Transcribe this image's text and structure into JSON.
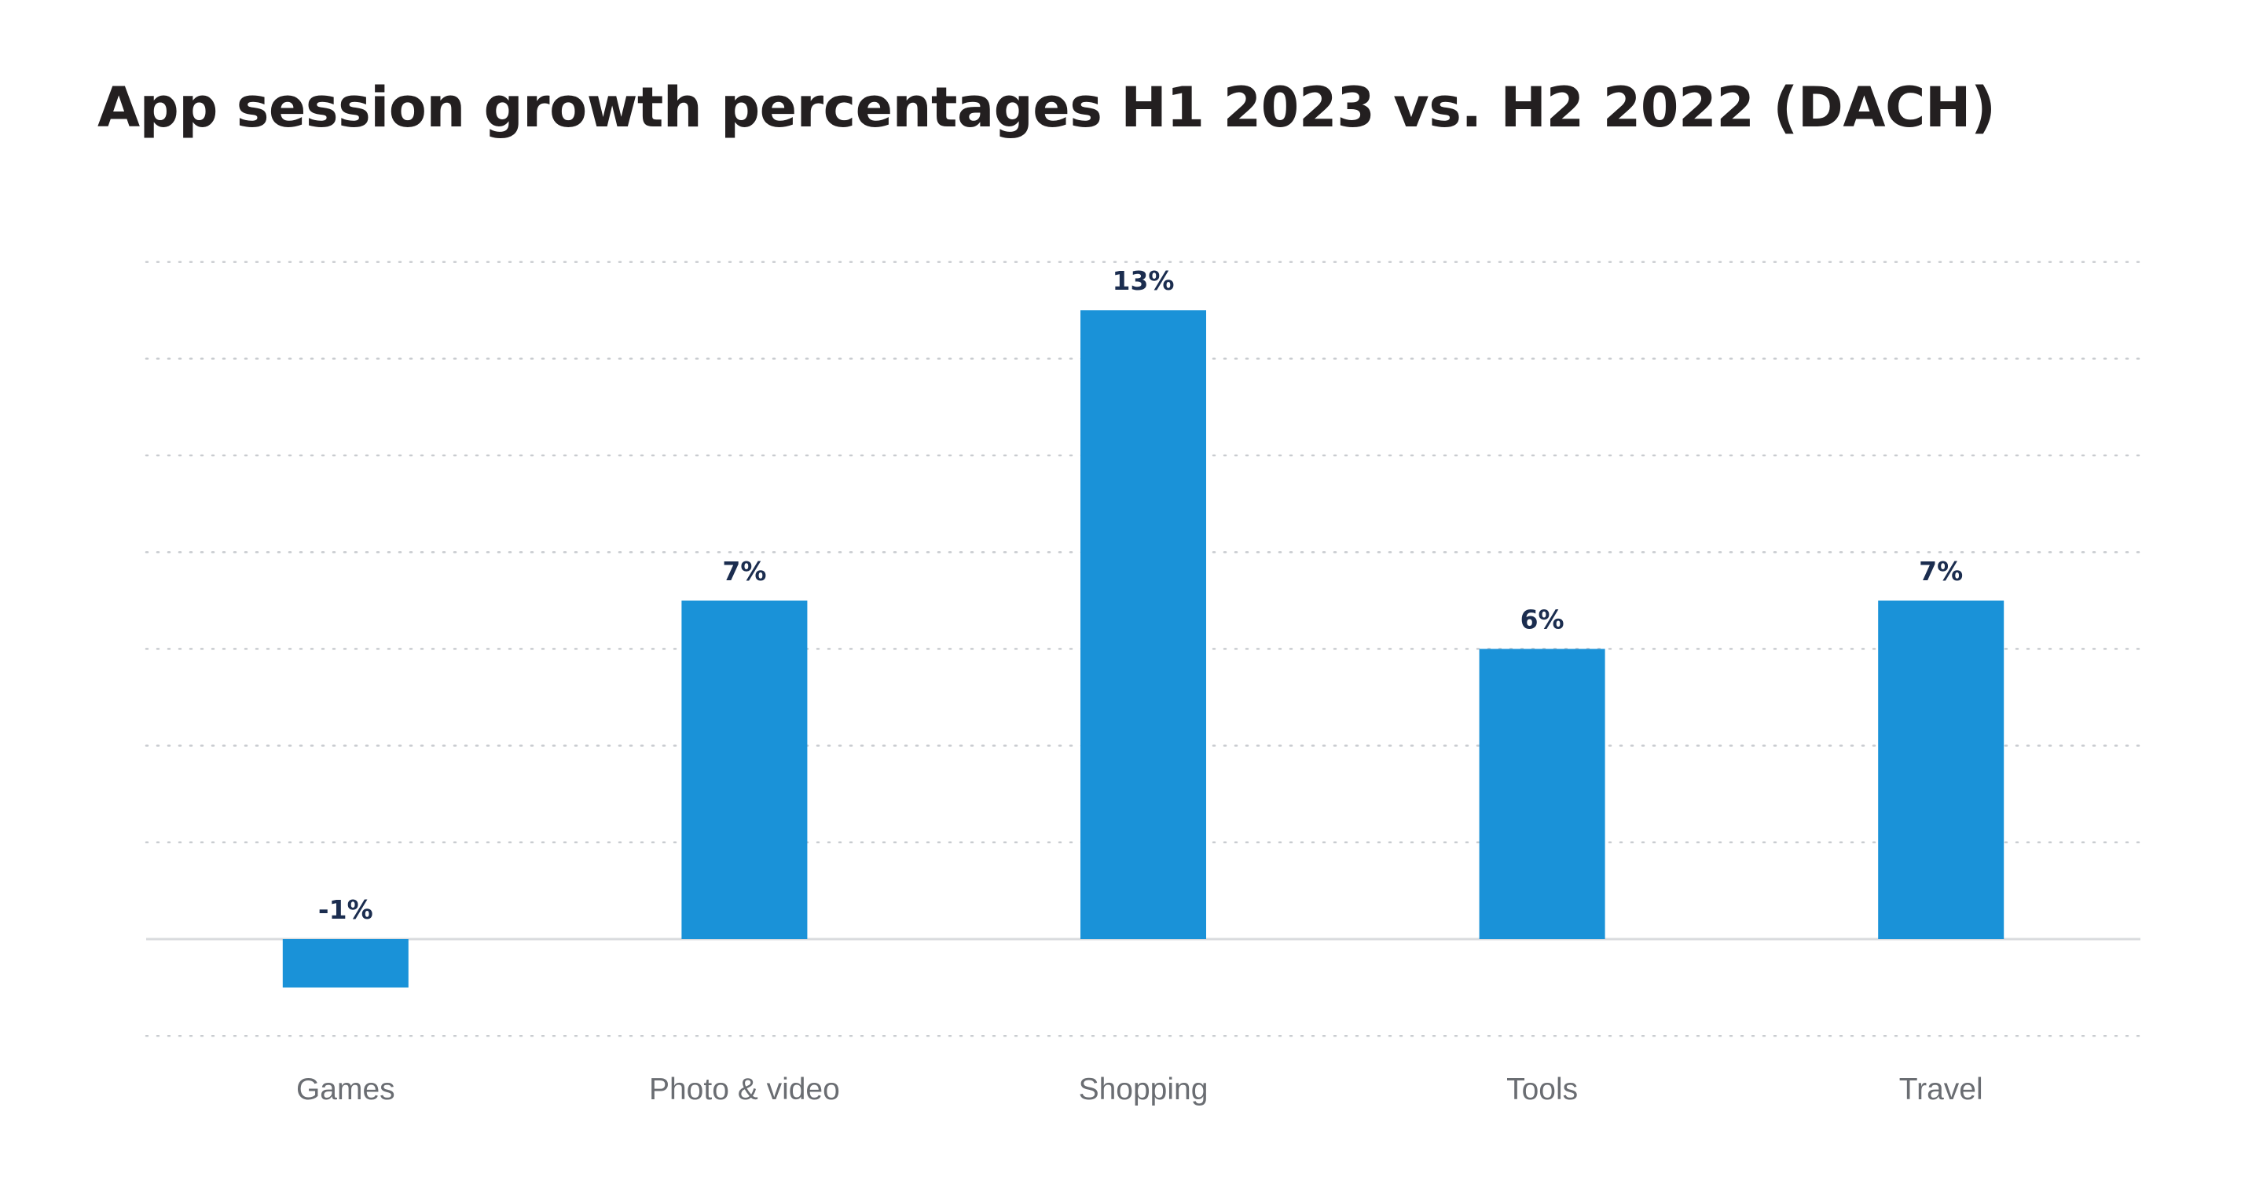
{
  "chart_data": {
    "type": "bar",
    "title": "App session growth percentages H1 2023 vs. H2 2022 (DACH)",
    "xlabel": "",
    "ylabel": "",
    "categories": [
      "Games",
      "Photo & video",
      "Shopping",
      "Tools",
      "Travel"
    ],
    "values": [
      -1,
      7,
      13,
      6,
      7
    ],
    "value_labels": [
      "-1%",
      "7%",
      "13%",
      "6%",
      "7%"
    ],
    "ylim": [
      -2,
      14
    ],
    "grid": true,
    "legend": "none",
    "colors": {
      "bar": "#1a92d8",
      "title": "#231f20",
      "value_label": "#1b2d4f",
      "category_label": "#6a6d72",
      "grid": "#c9ccd0"
    }
  }
}
